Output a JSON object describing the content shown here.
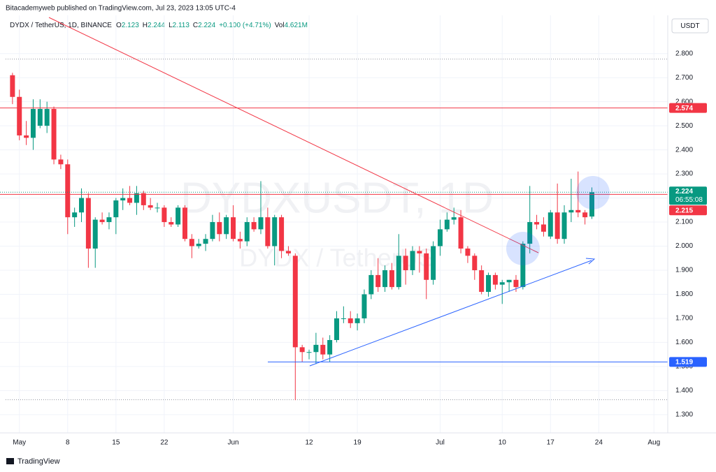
{
  "header": {
    "publisher": "Bitacademyweb published on TradingView.com, Jul 23, 2023 13:05 UTC-4",
    "symbol": "DYDX / TetherUS, 1D, BINANCE",
    "ohlc": [
      {
        "label": "O",
        "value": "2.123"
      },
      {
        "label": "H",
        "value": "2.244"
      },
      {
        "label": "L",
        "value": "2.113"
      },
      {
        "label": "C",
        "value": "2.224"
      }
    ],
    "change": "+0.100 (+4.71%)",
    "volume_label": "Vol",
    "volume": "4.621M"
  },
  "currency": "USDT",
  "watermark": {
    "symbol": "DYDXUSDT, 1D",
    "name": "DYDX / TetherUS"
  },
  "footer": "TradingView",
  "chart_data": {
    "type": "candlestick",
    "x": [
      "2023-04-30",
      "2023-05-01",
      "2023-05-02",
      "2023-05-03",
      "2023-05-04",
      "2023-05-05",
      "2023-05-06",
      "2023-05-07",
      "2023-05-08",
      "2023-05-09",
      "2023-05-10",
      "2023-05-11",
      "2023-05-12",
      "2023-05-13",
      "2023-05-14",
      "2023-05-15",
      "2023-05-16",
      "2023-05-17",
      "2023-05-18",
      "2023-05-19",
      "2023-05-20",
      "2023-05-21",
      "2023-05-22",
      "2023-05-23",
      "2023-05-24",
      "2023-05-25",
      "2023-05-26",
      "2023-05-27",
      "2023-05-28",
      "2023-05-29",
      "2023-05-30",
      "2023-05-31",
      "2023-06-01",
      "2023-06-02",
      "2023-06-03",
      "2023-06-04",
      "2023-06-05",
      "2023-06-06",
      "2023-06-07",
      "2023-06-08",
      "2023-06-09",
      "2023-06-10",
      "2023-06-11",
      "2023-06-12",
      "2023-06-13",
      "2023-06-14",
      "2023-06-15",
      "2023-06-16",
      "2023-06-17",
      "2023-06-18",
      "2023-06-19",
      "2023-06-20",
      "2023-06-21",
      "2023-06-22",
      "2023-06-23",
      "2023-06-24",
      "2023-06-25",
      "2023-06-26",
      "2023-06-27",
      "2023-06-28",
      "2023-06-29",
      "2023-06-30",
      "2023-07-01",
      "2023-07-02",
      "2023-07-03",
      "2023-07-04",
      "2023-07-05",
      "2023-07-06",
      "2023-07-07",
      "2023-07-08",
      "2023-07-09",
      "2023-07-10",
      "2023-07-11",
      "2023-07-12",
      "2023-07-13",
      "2023-07-14",
      "2023-07-15",
      "2023-07-16",
      "2023-07-17",
      "2023-07-18",
      "2023-07-19",
      "2023-07-20",
      "2023-07-21",
      "2023-07-22",
      "2023-07-23"
    ],
    "open": [
      2.71,
      2.62,
      2.46,
      2.45,
      2.5,
      2.5,
      2.57,
      2.36,
      2.34,
      2.12,
      2.14,
      2.2,
      1.99,
      2.11,
      2.1,
      2.12,
      2.19,
      2.2,
      2.18,
      2.22,
      2.17,
      2.16,
      2.16,
      2.1,
      2.09,
      2.16,
      2.03,
      2.0,
      2.01,
      2.03,
      2.1,
      2.05,
      2.12,
      2.03,
      2.02,
      2.1,
      2.07,
      2.12,
      2.0,
      2.12,
      1.98,
      1.96,
      1.58,
      1.56,
      1.56,
      1.59,
      1.55,
      1.61,
      1.7,
      1.7,
      1.68,
      1.7,
      1.8,
      1.88,
      1.83,
      1.9,
      1.83,
      1.96,
      1.9,
      1.98,
      1.97,
      1.86,
      2.0,
      2.07,
      2.11,
      2.12,
      1.99,
      1.96,
      1.9,
      1.81,
      1.88,
      1.84,
      1.85,
      1.86,
      1.83,
      2.01,
      2.1,
      2.09,
      2.04,
      2.14,
      2.03,
      2.14,
      2.15,
      2.14,
      2.123
    ],
    "high": [
      2.72,
      2.65,
      2.52,
      2.61,
      2.61,
      2.6,
      2.58,
      2.38,
      2.36,
      2.16,
      2.24,
      2.22,
      2.12,
      2.14,
      2.14,
      2.2,
      2.24,
      2.25,
      2.25,
      2.23,
      2.2,
      2.18,
      2.17,
      2.12,
      2.17,
      2.17,
      2.05,
      2.03,
      2.05,
      2.13,
      2.14,
      2.13,
      2.17,
      2.06,
      2.12,
      2.12,
      2.27,
      2.16,
      2.13,
      2.13,
      2.0,
      1.97,
      1.59,
      1.57,
      1.64,
      1.62,
      1.63,
      1.73,
      1.75,
      1.73,
      1.72,
      1.82,
      1.9,
      1.95,
      1.92,
      1.93,
      2.05,
      1.99,
      2.0,
      2.0,
      1.99,
      2.02,
      2.11,
      2.14,
      2.16,
      2.15,
      2.0,
      1.97,
      1.92,
      1.89,
      1.89,
      1.86,
      1.86,
      1.88,
      2.02,
      2.25,
      2.13,
      2.12,
      2.15,
      2.26,
      2.17,
      2.28,
      2.31,
      2.15,
      2.244
    ],
    "low": [
      2.59,
      2.44,
      2.42,
      2.4,
      2.49,
      2.47,
      2.34,
      2.32,
      2.05,
      2.08,
      2.1,
      1.91,
      1.91,
      2.09,
      2.07,
      2.05,
      2.15,
      2.17,
      2.13,
      2.15,
      2.15,
      2.14,
      2.08,
      2.08,
      2.08,
      2.02,
      1.95,
      1.99,
      1.98,
      2.02,
      2.02,
      2.03,
      2.02,
      1.99,
      2.0,
      2.06,
      2.05,
      1.99,
      1.92,
      1.95,
      1.96,
      1.36,
      1.52,
      1.53,
      1.51,
      1.53,
      1.52,
      1.6,
      1.68,
      1.66,
      1.65,
      1.68,
      1.78,
      1.81,
      1.81,
      1.82,
      1.82,
      1.84,
      1.88,
      1.89,
      1.78,
      1.84,
      1.96,
      2.06,
      2.09,
      1.97,
      1.93,
      1.86,
      1.8,
      1.79,
      1.82,
      1.76,
      1.81,
      1.81,
      1.82,
      1.97,
      2.07,
      2.04,
      2.03,
      2.01,
      2.01,
      2.1,
      2.12,
      2.09,
      2.113
    ],
    "close": [
      2.62,
      2.46,
      2.45,
      2.57,
      2.57,
      2.57,
      2.36,
      2.34,
      2.12,
      2.14,
      2.2,
      1.99,
      2.11,
      2.1,
      2.12,
      2.19,
      2.2,
      2.18,
      2.22,
      2.17,
      2.16,
      2.16,
      2.1,
      2.09,
      2.16,
      2.03,
      2.0,
      2.01,
      2.03,
      2.1,
      2.05,
      2.12,
      2.03,
      2.02,
      2.1,
      2.07,
      2.12,
      2.0,
      2.12,
      1.98,
      1.97,
      1.58,
      1.56,
      1.56,
      1.59,
      1.55,
      1.61,
      1.7,
      1.7,
      1.68,
      1.7,
      1.8,
      1.88,
      1.83,
      1.9,
      1.83,
      1.96,
      1.9,
      1.98,
      1.97,
      1.86,
      2.0,
      2.07,
      2.11,
      2.12,
      1.99,
      1.96,
      1.9,
      1.81,
      1.88,
      1.84,
      1.85,
      1.86,
      1.83,
      2.01,
      2.1,
      2.09,
      2.06,
      2.14,
      2.03,
      2.14,
      2.15,
      2.14,
      2.12,
      2.224
    ],
    "up_color": "#089981",
    "down_color": "#f23645",
    "ylim": [
      1.23,
      2.95
    ],
    "yticks": [
      {
        "value": 2.8,
        "label": "2.800"
      },
      {
        "value": 2.7,
        "label": "2.700"
      },
      {
        "value": 2.6,
        "label": "2.600"
      },
      {
        "value": 2.5,
        "label": "2.500"
      },
      {
        "value": 2.4,
        "label": "2.400"
      },
      {
        "value": 2.3,
        "label": "2.300"
      },
      {
        "value": 2.2,
        "label": "2.200"
      },
      {
        "value": 2.1,
        "label": "2.100"
      },
      {
        "value": 2,
        "label": "2.000"
      },
      {
        "value": 1.9,
        "label": "1.900"
      },
      {
        "value": 1.8,
        "label": "1.800"
      },
      {
        "value": 1.7,
        "label": "1.700"
      },
      {
        "value": 1.6,
        "label": "1.600"
      },
      {
        "value": 1.5,
        "label": "1.500"
      },
      {
        "value": 1.4,
        "label": "1.400"
      },
      {
        "value": 1.3,
        "label": "1.300"
      }
    ],
    "xlim": [
      "2023-04-29",
      "2023-08-03"
    ],
    "xticks": [
      {
        "value": "2023-05-01",
        "label": "May"
      },
      {
        "value": "2023-05-08",
        "label": "8"
      },
      {
        "value": "2023-05-15",
        "label": "15"
      },
      {
        "value": "2023-05-22",
        "label": "22"
      },
      {
        "value": "2023-06-01",
        "label": "Jun"
      },
      {
        "value": "2023-06-12",
        "label": "12"
      },
      {
        "value": "2023-06-19",
        "label": "19"
      },
      {
        "value": "2023-07-01",
        "label": "Jul"
      },
      {
        "value": "2023-07-10",
        "label": "10"
      },
      {
        "value": "2023-07-17",
        "label": "17"
      },
      {
        "value": "2023-07-24",
        "label": "24"
      },
      {
        "value": "2023-08-01",
        "label": "Aug"
      }
    ],
    "grid": true,
    "dotted_levels": [
      2.777,
      1.362
    ],
    "price_lines": [
      {
        "value": 2.574,
        "label": "2.574",
        "color": "#f23645"
      },
      {
        "value": 2.215,
        "label": "2.215",
        "color": "#f23645"
      },
      {
        "value": 1.519,
        "label": "1.519",
        "color": "#2962ff"
      }
    ],
    "last_price": {
      "value": 2.224,
      "label": "2.224",
      "countdown": "06:55:08"
    }
  }
}
